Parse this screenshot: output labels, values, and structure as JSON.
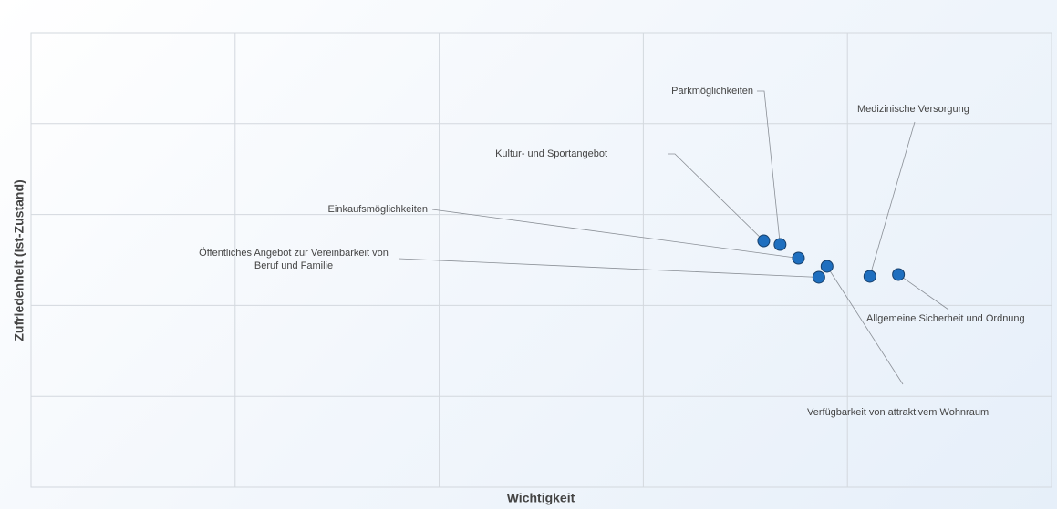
{
  "chart_data": {
    "type": "scatter",
    "x_label": "Wichtigkeit",
    "y_label": "Zufriedenheit (Ist-Zustand)",
    "labels": [
      "Parkmöglichkeiten",
      "Kultur- und Sportangebot",
      "Einkaufsmöglichkeiten",
      "Öffentliches Angebot zur Vereinbarkeit von Beruf und Familie",
      "Verfügbarkeit von attraktivem Wohnraum",
      "Medizinische Versorgung",
      "Allgemeine Sicherheit und Ordnung"
    ],
    "series": [
      {
        "color": "#1f6fbf",
        "x": [
          3.67,
          3.59,
          3.76,
          3.86,
          3.9,
          4.11,
          4.25
        ],
        "values": [
          2.67,
          2.71,
          2.52,
          2.31,
          2.43,
          2.32,
          2.34
        ]
      }
    ],
    "xlim": [
      0,
      5
    ],
    "ylim": [
      0,
      5
    ],
    "xticks": [
      0,
      1,
      2,
      3,
      4,
      5
    ],
    "yticks": [
      0,
      1,
      2,
      3,
      4,
      5
    ],
    "grid": true,
    "tick_labels": false
  }
}
